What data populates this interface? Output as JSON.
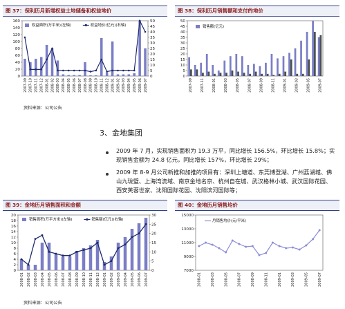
{
  "figures": {
    "fig37": {
      "title": "图 37：保利历月新增权益土地储备和权益地价",
      "legend": [
        "权益面积(万平米)(左轴)",
        "权益地价(亿元)(右轴)"
      ]
    },
    "fig38": {
      "title": "图 38：保利历月销售额和支付的地价",
      "legend": [
        "销售额(亿元)"
      ]
    },
    "fig39": {
      "title": "图 39：金地历月销售面积和金额",
      "legend": [
        "销售面积(万平方米)(左轴)",
        "销售额(亿元)(右轴)"
      ]
    },
    "fig40": {
      "title": "图 40：金地历月销售均价",
      "legend": [
        "月销售均价(元/平米)"
      ]
    }
  },
  "sources": {
    "top": "资料来源：公司公告",
    "bottom": "资料来源：公司公告"
  },
  "section": {
    "title": "3、金地集团",
    "paragraph1": "2009 年 7 月，实现销售面积为 19.3 万平，同比增长 156.5%，环比增长 15.8%；实现销售金额为 24.8 亿元，同比增长 157%，环比增长 29%；",
    "paragraph2": "2009 年 8-9 月公司新推和加推的项目有：深圳上塘道、东莞博登湖、广州荔湖城、佛山九珑璧、上海湾流域、南京金地名京、杭州自在城、武汉格林小城、武汉国际花园、西安芙蓉世家、沈阳国际花园、沈阳滨河国际等；"
  },
  "chart_data": [
    {
      "id": "fig37",
      "type": "bar",
      "categories": [
        "2007-09",
        "2007-10",
        "2007-11",
        "2007-12",
        "2008-01",
        "2008-02",
        "2008-03",
        "2008-04",
        "2008-05",
        "2008-06",
        "2008-07",
        "2008-08",
        "2008-09",
        "2008-10",
        "2008-11",
        "2008-12",
        "2009-01",
        "2009-02",
        "2009-03",
        "2009-04",
        "2009-05",
        "2009-06",
        "2009-07"
      ],
      "series": [
        {
          "name": "权益面积(万平米)(左轴)",
          "type": "bar",
          "axis": "left",
          "values": [
            50,
            40,
            50,
            55,
            90,
            80,
            45,
            5,
            3,
            3,
            3,
            40,
            2,
            2,
            110,
            10,
            100,
            5,
            5,
            5,
            8,
            160,
            80
          ]
        },
        {
          "name": "权益地价(亿元)(右轴)",
          "type": "line",
          "axis": "right",
          "values": [
            35,
            6,
            6,
            6,
            15,
            25,
            5,
            5,
            5,
            5,
            5,
            5,
            4,
            5,
            15,
            4,
            5,
            5,
            5,
            5,
            5,
            50,
            40
          ]
        }
      ],
      "ylim_left": [
        0,
        160
      ],
      "yticks_left": [
        0,
        20,
        40,
        60,
        80,
        100,
        120,
        140,
        160
      ],
      "ylim_right": [
        0,
        50
      ],
      "yticks_right": [
        0,
        5,
        10,
        15,
        20,
        25,
        30,
        35,
        40,
        45,
        50
      ],
      "xlabels_shown": [
        "2007-09",
        "2007-10",
        "2007-11",
        "2007-12",
        "2008-01",
        "2008-02",
        "2008-03",
        "2008-04",
        "2008-05",
        "2008-06",
        "2008-07",
        "2008-08",
        "2008-09",
        "2008-10",
        "2008-11",
        "2008-12",
        "2009-01",
        "2009-02",
        "2009-03",
        "2009-04",
        "2009-05",
        "2009-06",
        "2009-07"
      ]
    },
    {
      "id": "fig38",
      "type": "bar",
      "categories": [
        "2007-09",
        "2007-10",
        "2007-11",
        "2007-12",
        "2008-01",
        "2008-02",
        "2008-03",
        "2008-04",
        "2008-05",
        "2008-06",
        "2008-07",
        "2008-08",
        "2008-09",
        "2008-10",
        "2008-11",
        "2008-12",
        "2009-01",
        "2009-02",
        "2009-03",
        "2009-04",
        "2009-05",
        "2009-06",
        "2009-07"
      ],
      "series": [
        {
          "name": "销售额(亿元)",
          "values": [
            17,
            10,
            12,
            20,
            10,
            5,
            14,
            18,
            20,
            18,
            10,
            11,
            9,
            12,
            20,
            16,
            18,
            21,
            25,
            32,
            40,
            50,
            35
          ]
        },
        {
          "name": "",
          "values": [
            6,
            6,
            3,
            4,
            2,
            3,
            3,
            5,
            4,
            3,
            2,
            4,
            2,
            2,
            1,
            2,
            4,
            15,
            2,
            2,
            15,
            40,
            37
          ]
        }
      ],
      "ylim": [
        0,
        50
      ],
      "yticks": [
        0,
        5,
        10,
        15,
        20,
        25,
        30,
        35,
        40,
        45,
        50
      ],
      "xlabels_shown": [
        "2007-09",
        "2007-11",
        "2008-01",
        "2008-03",
        "2008-05",
        "2008-07",
        "2008-09",
        "2008-11",
        "2009-01",
        "2009-03",
        "2009-05",
        "2009-07"
      ]
    },
    {
      "id": "fig39",
      "type": "bar",
      "categories": [
        "2008-01",
        "2008-02",
        "2008-03",
        "2008-04",
        "2008-05",
        "2008-06",
        "2008-07",
        "2008-08",
        "2008-09",
        "2008-10",
        "2008-11",
        "2008-12",
        "2009-01",
        "2009-02",
        "2009-03",
        "2009-04",
        "2009-05",
        "2009-06",
        "2009-07"
      ],
      "series": [
        {
          "name": "销售面积(万平方米)(左轴)",
          "type": "bar",
          "axis": "left",
          "values": [
            4,
            2,
            2,
            10,
            10,
            6,
            5,
            5,
            7,
            8,
            9,
            11,
            3,
            5,
            10,
            12,
            15,
            17,
            19
          ]
        },
        {
          "name": "销售额(亿元)(右轴)",
          "type": "line",
          "axis": "right",
          "values": [
            6,
            3,
            17,
            19,
            10,
            9,
            8,
            8,
            10,
            11,
            12,
            15,
            3,
            5,
            12,
            14,
            18,
            20,
            25
          ]
        }
      ],
      "ylim_left": [
        0,
        20
      ],
      "yticks_left": [
        0,
        2,
        4,
        6,
        8,
        10,
        12,
        14,
        16,
        18,
        20
      ],
      "ylim_right": [
        0,
        30
      ],
      "yticks_right": [
        0,
        5,
        10,
        15,
        20,
        25,
        30
      ],
      "xlabels_shown": [
        "2008-01",
        "2008-02",
        "2008-03",
        "2008-04",
        "2008-05",
        "2008-06",
        "2008-07",
        "2008-08",
        "2008-09",
        "2008-10",
        "2008-11",
        "2008-12",
        "2009-01",
        "2009-02",
        "2009-03",
        "2009-04",
        "2009-05",
        "2009-06",
        "2009-07"
      ]
    },
    {
      "id": "fig40",
      "type": "line",
      "categories": [
        "2008-01",
        "2008-02",
        "2008-03",
        "2008-04",
        "2008-05",
        "2008-06",
        "2008-07",
        "2008-08",
        "2008-09",
        "2008-10",
        "2008-11",
        "2008-12",
        "2009-01",
        "2009-02",
        "2009-03",
        "2009-04",
        "2009-05",
        "2009-06",
        "2009-07"
      ],
      "series": [
        {
          "name": "月销售均价(元/平米)",
          "values": [
            10500,
            11000,
            10700,
            10200,
            9600,
            11300,
            10800,
            10400,
            10500,
            9200,
            9500,
            11000,
            10500,
            10200,
            10300,
            10000,
            10600,
            11500,
            12800
          ]
        }
      ],
      "ylim": [
        7000,
        15000
      ],
      "yticks": [
        7000,
        9000,
        11000,
        13000,
        15000
      ],
      "xlabels_shown": [
        "2008-01",
        "2008-03",
        "2008-05",
        "2008-07",
        "2008-09",
        "2008-11",
        "2009-01",
        "2009-03",
        "2009-05",
        "2009-07"
      ]
    }
  ],
  "colors": {
    "bar": "#7a7ec6",
    "bar_dark": "#4b4f4f",
    "line": "#1f2a6b",
    "line40": "#8a8ed6",
    "title_red": "#8a1f1f",
    "head_border": "#2f3f86"
  }
}
